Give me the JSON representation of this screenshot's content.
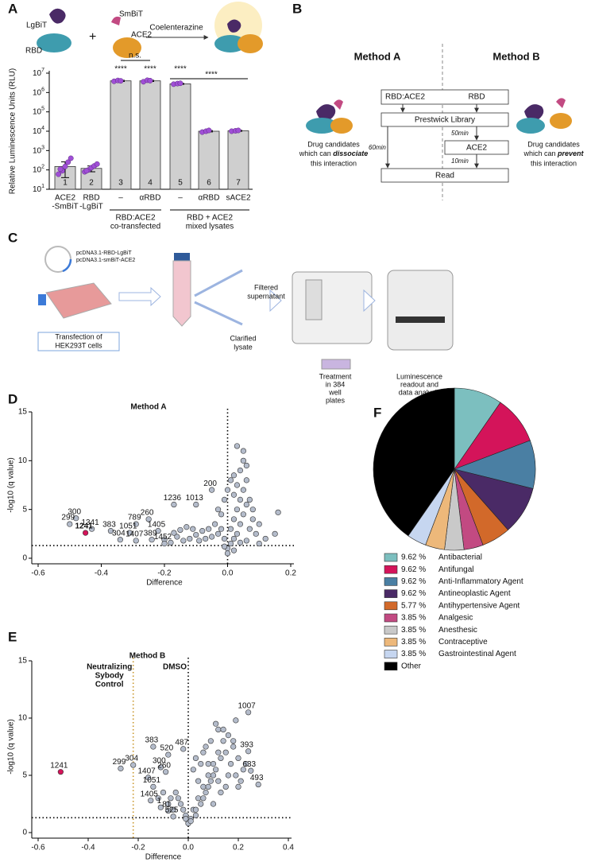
{
  "panel_labels": [
    "A",
    "B",
    "C",
    "D",
    "E",
    "F"
  ],
  "diagram_a": {
    "lgbit": "LgBiT",
    "rbd": "RBD",
    "plus": "+",
    "smbit": "SmBiT",
    "ace2": "ACE2",
    "arrow": "Coelenterazine"
  },
  "diagram_b": {
    "method_a": "Method A",
    "method_b": "Method B",
    "box_1_left": "RBD:ACE2",
    "box_1_right": "RBD",
    "box_2": "Prestwick Library",
    "box_3": "ACE2",
    "box_4": "Read",
    "time_a": "60min",
    "time_b1": "50min",
    "time_b2": "10min",
    "left_note": [
      "Drug candidates",
      "which can",
      "dissociate",
      "this interaction"
    ],
    "right_note": [
      "Drug candidates",
      "which can",
      "prevent",
      "this interaction"
    ]
  },
  "diagram_c": {
    "plasmids": [
      "pcDNA3.1-RBD-LgBiT",
      "pcDNA3.1-smBiT-ACE2"
    ],
    "transfection": [
      "Transfection of",
      "HEK293T cells"
    ],
    "supernatant": [
      "Filtered",
      "supernatant"
    ],
    "lysate": [
      "Clarified",
      "lysate"
    ],
    "treatment": [
      "Treatment",
      "in 384",
      "well",
      "plates"
    ],
    "readout": [
      "Luminescence",
      "readout  and",
      "data analysis"
    ]
  },
  "chart_data": [
    {
      "type": "bar",
      "y_label": "Relative Luminescence Units (RLU)",
      "log": true,
      "ylim": [
        10,
        10000000
      ],
      "yticks": [
        {
          "value": 10,
          "label": "10",
          "sup": "1"
        },
        {
          "value": 100,
          "label": "10",
          "sup": "2"
        },
        {
          "value": 1000,
          "label": "10",
          "sup": "3"
        },
        {
          "value": 10000,
          "label": "10",
          "sup": "4"
        },
        {
          "value": 100000,
          "label": "10",
          "sup": "5"
        },
        {
          "value": 1000000,
          "label": "10",
          "sup": "6"
        },
        {
          "value": 10000000,
          "label": "10",
          "sup": "7"
        }
      ],
      "categories": [
        [
          "ACE2",
          "-SmBiT"
        ],
        [
          "RBD",
          "-LgBiT"
        ],
        [
          "–"
        ],
        [
          "αRBD"
        ],
        [
          "–"
        ],
        [
          "αRBD"
        ],
        [
          "sACE2"
        ]
      ],
      "bar_numbers": [
        "1",
        "2",
        "3",
        "4",
        "5",
        "6",
        "7"
      ],
      "values": [
        150,
        120,
        4000000,
        4000000,
        2800000,
        10000,
        10500
      ],
      "errors": [
        110,
        40,
        300000,
        300000,
        150000,
        800,
        600
      ],
      "replicates": [
        [
          60,
          90,
          150,
          250,
          400,
          110
        ],
        [
          80,
          100,
          130,
          160,
          200,
          90
        ],
        [
          3800000,
          4200000,
          4000000
        ],
        [
          3600000,
          4300000,
          4100000
        ],
        [
          2700000,
          2900000,
          3000000
        ],
        [
          9000,
          10000,
          11000
        ],
        [
          10000,
          10500,
          11000
        ]
      ],
      "color": "#cfcfcf",
      "point_color": "#a04fd6",
      "groups": [
        [
          "RBD:ACE2",
          "co-transfected"
        ],
        [
          "RBD + ACE2",
          "mixed lysates"
        ]
      ],
      "annotations": [
        "****",
        "****",
        "****",
        "n.s.",
        "****"
      ]
    },
    {
      "type": "scatter",
      "title": "Method A",
      "x_label": "Difference",
      "y_label": "-log10 (q value)",
      "xlim": [
        -0.6,
        0.2
      ],
      "ylim": [
        0,
        15
      ],
      "xticks": [
        -0.6,
        -0.4,
        -0.2,
        {
          "value": 0,
          "label": "0.0"
        },
        0.2
      ],
      "yticks": [
        0,
        5,
        10,
        15
      ],
      "threshold": 1.3,
      "zero_line": true,
      "series": [
        {
          "color": "#b4bccb",
          "x": [
            0.0,
            0.01,
            0.02,
            0.03,
            0.01,
            0.04,
            0.02,
            0.05,
            0.03,
            0.06,
            0.04,
            0.02,
            0.05,
            0.03,
            0.06,
            0.02,
            0.04,
            0.05,
            0.03,
            0.05,
            0.07,
            0.08,
            0.09,
            0.1,
            0.12,
            0.15,
            0.16,
            0.07,
            0.06,
            0.08,
            -0.01,
            -0.02,
            -0.03,
            -0.04,
            -0.05,
            -0.06,
            -0.07,
            -0.08,
            -0.09,
            -0.1,
            -0.12,
            -0.14,
            -0.16,
            -0.18,
            -0.2,
            -0.11,
            -0.02,
            -0.03,
            -0.01,
            0.0,
            0.01,
            0.0,
            0.02,
            -0.01,
            0.04,
            0.06,
            0.1,
            -0.13,
            -0.15,
            -0.17
          ],
          "y": [
            1.0,
            1.5,
            2.0,
            2.5,
            3.0,
            3.5,
            4.0,
            4.5,
            5.0,
            5.5,
            6.0,
            6.5,
            7.0,
            7.5,
            8.0,
            8.5,
            9.0,
            10.0,
            11.5,
            11.0,
            3.0,
            4.0,
            2.5,
            3.5,
            2.0,
            2.5,
            4.7,
            6.0,
            9.5,
            5.0,
            2.0,
            3.0,
            2.5,
            3.5,
            2.2,
            3.0,
            2.0,
            2.8,
            1.8,
            2.4,
            2.0,
            1.8,
            2.2,
            1.6,
            1.9,
            3.0,
            4.5,
            5.0,
            6.0,
            7.0,
            8.0,
            0.5,
            0.8,
            1.2,
            1.6,
            1.8,
            1.5,
            3.2,
            2.9,
            2.6
          ]
        },
        {
          "color": "#b4bccb",
          "x": [
            -0.48,
            -0.5,
            -0.43,
            -0.37,
            -0.29,
            -0.25,
            -0.31,
            -0.22,
            -0.34,
            -0.29,
            -0.24,
            -0.2,
            -0.17,
            -0.1,
            -0.05
          ],
          "y": [
            4.1,
            3.5,
            3.0,
            2.8,
            3.5,
            4.0,
            2.6,
            2.8,
            1.9,
            1.8,
            1.9,
            1.5,
            5.5,
            5.5,
            7.0
          ],
          "labels": [
            "300",
            "299",
            "1341",
            "383",
            "789",
            "260",
            "1051",
            "1405",
            "304",
            "1407",
            "389",
            "1452",
            "1236",
            "1013",
            "200"
          ]
        },
        {
          "color": "#d4145a",
          "x": [
            -0.45
          ],
          "y": [
            2.6
          ],
          "labels": [
            "1241"
          ],
          "bold": true
        }
      ]
    },
    {
      "type": "scatter",
      "title": "Method B",
      "x_label": "Difference",
      "y_label": "-log10 (q value)",
      "xlim": [
        -0.6,
        0.4
      ],
      "ylim": [
        0,
        15
      ],
      "xticks": [
        -0.6,
        -0.4,
        -0.2,
        {
          "value": 0,
          "label": "0.0"
        },
        0.2,
        0.4
      ],
      "yticks": [
        0,
        5,
        10,
        15
      ],
      "threshold": 1.3,
      "zero_line": true,
      "zero_label": "DMSO",
      "control_line": {
        "x": -0.22,
        "label": [
          "Neutralizing",
          "Sybody",
          "Control"
        ],
        "color": "#c8962a"
      },
      "series": [
        {
          "color": "#b4bccb",
          "x": [
            0.0,
            0.02,
            0.04,
            0.06,
            0.08,
            0.1,
            0.12,
            0.14,
            0.16,
            0.18,
            0.2,
            0.22,
            0.03,
            0.05,
            0.07,
            0.09,
            0.11,
            0.13,
            0.15,
            0.17,
            0.19,
            0.21,
            0.01,
            0.03,
            0.06,
            0.08,
            0.1,
            0.12,
            0.05,
            0.07,
            -0.01,
            -0.02,
            -0.03,
            -0.04,
            -0.05,
            -0.06,
            -0.07,
            -0.08,
            -0.1,
            -0.12,
            0.09,
            0.11,
            0.14,
            0.16,
            0.04,
            0.02,
            0.13,
            0.18,
            0.2,
            0.1,
            0.0,
            0.01,
            -0.01,
            0.03,
            0.06,
            0.08,
            0.12,
            0.15,
            0.23,
            0.19
          ],
          "y": [
            1.0,
            2.0,
            3.0,
            4.0,
            5.0,
            6.0,
            7.0,
            8.0,
            8.5,
            7.5,
            6.5,
            5.5,
            1.5,
            2.5,
            3.5,
            4.5,
            5.5,
            6.5,
            7.0,
            6.0,
            5.0,
            4.5,
            1.2,
            2.0,
            3.0,
            4.0,
            5.0,
            9.0,
            6.0,
            7.5,
            1.5,
            2.0,
            2.5,
            3.0,
            3.5,
            2.0,
            3.0,
            2.5,
            3.5,
            3.0,
            8.0,
            9.5,
            9.0,
            5.0,
            4.5,
            5.5,
            3.5,
            8.0,
            4.0,
            2.5,
            0.8,
            1.0,
            1.2,
            6.5,
            7.0,
            6.0,
            4.5,
            4.0,
            6.0,
            9.8
          ]
        },
        {
          "color": "#b4bccb",
          "x": [
            -0.27,
            -0.22,
            -0.14,
            -0.08,
            -0.02,
            -0.11,
            -0.09,
            -0.16,
            -0.14,
            -0.15,
            -0.11,
            -0.08,
            -0.06,
            0.24,
            0.24,
            0.25,
            0.28
          ],
          "y": [
            5.6,
            5.9,
            7.5,
            6.8,
            7.3,
            5.7,
            5.3,
            4.8,
            4.0,
            2.8,
            2.2,
            1.9,
            1.4,
            10.5,
            7.1,
            5.4,
            4.2
          ],
          "labels": [
            "299",
            "304",
            "383",
            "520",
            "487",
            "300",
            "260",
            "1407",
            "1051",
            "1405",
            "1",
            "81",
            "525",
            "1007",
            "393",
            "633",
            "493"
          ]
        },
        {
          "color": "#d4145a",
          "x": [
            -0.51
          ],
          "y": [
            5.3
          ],
          "labels": [
            "1241"
          ]
        }
      ]
    },
    {
      "type": "pie",
      "categories": [
        "Antibacterial",
        "Antifungal",
        "Anti-Inflammatory Agent",
        "Antineoplastic Agent",
        "Antihypertensive Agent",
        "Analgesic",
        "Anesthesic",
        "Contraceptive",
        "Gastrointestinal Agent",
        "Other"
      ],
      "values": [
        9.62,
        9.62,
        9.62,
        9.62,
        5.77,
        3.85,
        3.85,
        3.85,
        3.85,
        40.35
      ],
      "value_labels": [
        "9.62 %",
        "9.62 %",
        "9.62 %",
        "9.62 %",
        "5.77 %",
        "3.85 %",
        "3.85 %",
        "3.85 %",
        "3.85 %",
        null
      ],
      "colors": [
        "#7cbfbf",
        "#d4145a",
        "#4a7fa3",
        "#4a2a66",
        "#d2692a",
        "#c24a82",
        "#c9c9c9",
        "#edb87a",
        "#c6d6f0",
        "#000000"
      ]
    }
  ]
}
